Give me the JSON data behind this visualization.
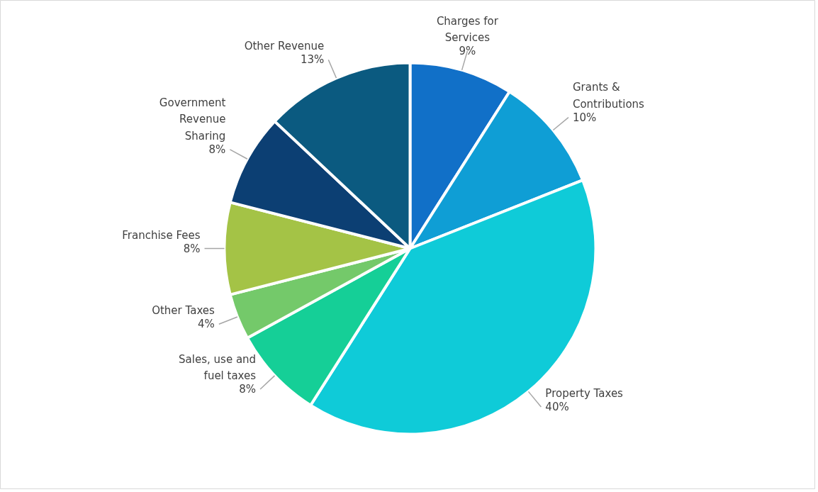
{
  "chart_data": {
    "type": "pie",
    "categories": [
      "Charges for Services",
      "Grants & Contributions",
      "Property Taxes",
      "Sales, use and fuel taxes",
      "Other Taxes",
      "Franchise Fees",
      "Government Revenue Sharing",
      "Other Revenue"
    ],
    "values": [
      9,
      10,
      40,
      8,
      4,
      8,
      8,
      13
    ],
    "value_labels": [
      "9%",
      "10%",
      "40%",
      "8%",
      "4%",
      "8%",
      "8%",
      "13%"
    ],
    "colors": [
      "#1170c8",
      "#0f9ed5",
      "#0fcbd8",
      "#15cf97",
      "#74c96a",
      "#a4c346",
      "#0c3f73",
      "#0b5a80"
    ],
    "legend": false
  }
}
